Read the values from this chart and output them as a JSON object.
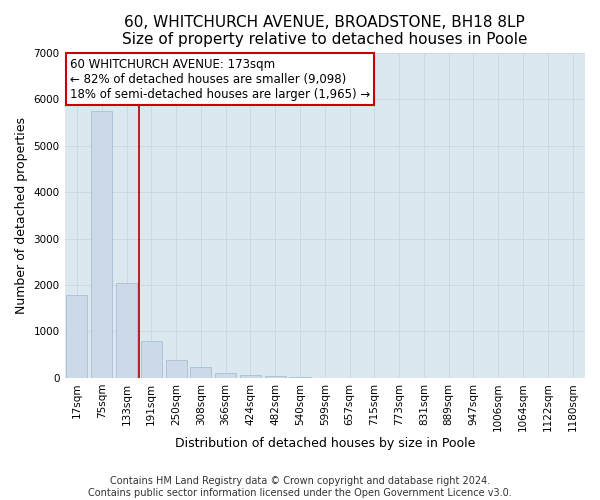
{
  "title": "60, WHITCHURCH AVENUE, BROADSTONE, BH18 8LP",
  "subtitle": "Size of property relative to detached houses in Poole",
  "xlabel": "Distribution of detached houses by size in Poole",
  "ylabel": "Number of detached properties",
  "bar_labels": [
    "17sqm",
    "75sqm",
    "133sqm",
    "191sqm",
    "250sqm",
    "308sqm",
    "366sqm",
    "424sqm",
    "482sqm",
    "540sqm",
    "599sqm",
    "657sqm",
    "715sqm",
    "773sqm",
    "831sqm",
    "889sqm",
    "947sqm",
    "1006sqm",
    "1064sqm",
    "1122sqm",
    "1180sqm"
  ],
  "bar_heights": [
    1780,
    5750,
    2050,
    800,
    380,
    230,
    100,
    60,
    30,
    10,
    5,
    0,
    0,
    0,
    0,
    0,
    0,
    0,
    0,
    0,
    0
  ],
  "bar_color": "#ccd9e8",
  "bar_edge_color": "#a8bfd4",
  "vline_color": "#aa0000",
  "annotation_line1": "60 WHITCHURCH AVENUE: 173sqm",
  "annotation_line2": "← 82% of detached houses are smaller (9,098)",
  "annotation_line3": "18% of semi-detached houses are larger (1,965) →",
  "annotation_box_color": "#ffffff",
  "annotation_box_edgecolor": "#cc0000",
  "ylim": [
    0,
    7000
  ],
  "yticks": [
    0,
    1000,
    2000,
    3000,
    4000,
    5000,
    6000,
    7000
  ],
  "footer_line1": "Contains HM Land Registry data © Crown copyright and database right 2024.",
  "footer_line2": "Contains public sector information licensed under the Open Government Licence v3.0.",
  "grid_color": "#cdd8e3",
  "bg_color": "#dce8f0",
  "title_fontsize": 11,
  "tick_fontsize": 7.5,
  "label_fontsize": 9,
  "footer_fontsize": 7,
  "annot_fontsize": 8.5
}
